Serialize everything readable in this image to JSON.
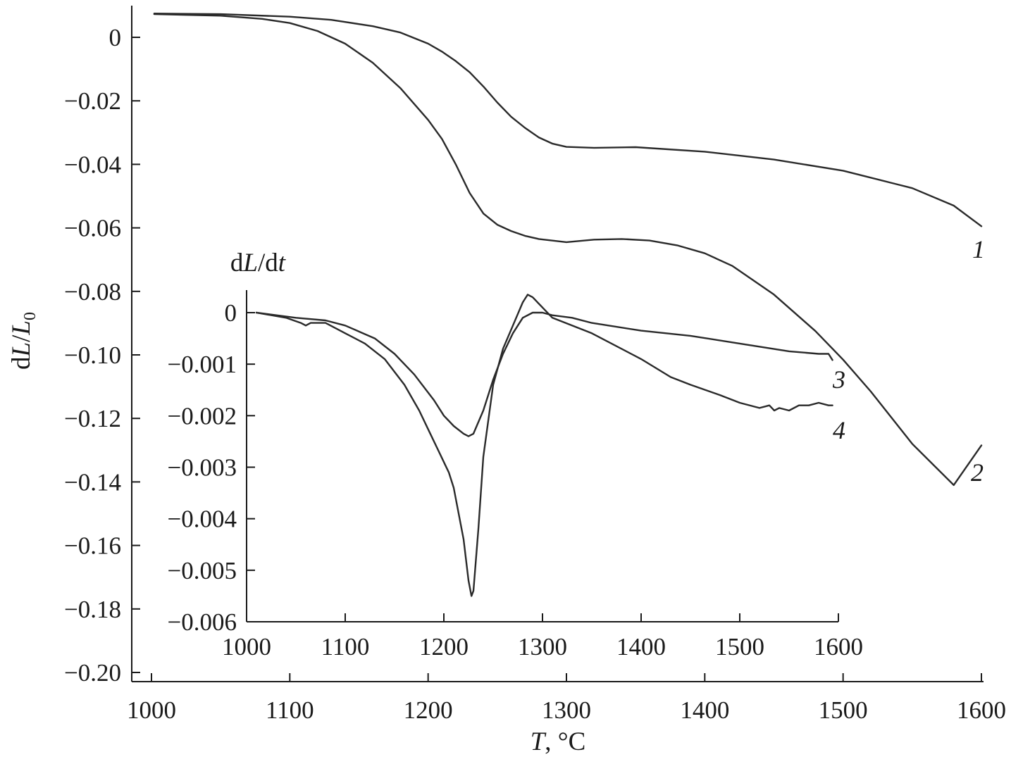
{
  "chart_data": [
    {
      "id": "main",
      "type": "line",
      "title": "",
      "xlabel": "T, °C",
      "ylabel": "dL/L0",
      "xlim": [
        1000,
        1600
      ],
      "ylim": [
        -0.2,
        0.01
      ],
      "x_ticks": [
        1000,
        1100,
        1200,
        1300,
        1400,
        1500,
        1600
      ],
      "x_tick_labels": [
        "1000",
        "1100",
        "1200",
        "1300",
        "1400",
        "1500",
        "1600"
      ],
      "y_ticks": [
        0,
        -0.02,
        -0.04,
        -0.06,
        -0.08,
        -0.1,
        -0.12,
        -0.14,
        -0.16,
        -0.18,
        -0.2
      ],
      "y_tick_labels": [
        "0",
        "−0.02",
        "−0.04",
        "−0.06",
        "−0.08",
        "−0.10",
        "−0.12",
        "−0.14",
        "−0.16",
        "−0.18",
        "−0.20"
      ],
      "grid": false,
      "series": [
        {
          "name": "1",
          "x": [
            1002,
            1050,
            1100,
            1130,
            1160,
            1180,
            1200,
            1210,
            1220,
            1230,
            1240,
            1250,
            1260,
            1270,
            1280,
            1290,
            1300,
            1320,
            1350,
            1400,
            1450,
            1500,
            1550,
            1580,
            1600
          ],
          "y": [
            0.0075,
            0.0073,
            0.0065,
            0.0055,
            0.0035,
            0.0015,
            -0.002,
            -0.0045,
            -0.0075,
            -0.011,
            -0.0155,
            -0.0205,
            -0.025,
            -0.0285,
            -0.0315,
            -0.0335,
            -0.0345,
            -0.0348,
            -0.0346,
            -0.036,
            -0.0385,
            -0.042,
            -0.0475,
            -0.053,
            -0.0595
          ]
        },
        {
          "name": "2",
          "x": [
            1002,
            1050,
            1080,
            1100,
            1120,
            1140,
            1160,
            1180,
            1200,
            1210,
            1220,
            1230,
            1240,
            1250,
            1260,
            1270,
            1280,
            1300,
            1320,
            1340,
            1360,
            1380,
            1400,
            1420,
            1450,
            1480,
            1500,
            1520,
            1550,
            1580,
            1600
          ],
          "y": [
            0.0073,
            0.0068,
            0.0058,
            0.0045,
            0.002,
            -0.002,
            -0.008,
            -0.016,
            -0.026,
            -0.032,
            -0.04,
            -0.049,
            -0.0555,
            -0.059,
            -0.061,
            -0.0625,
            -0.0635,
            -0.0645,
            -0.0637,
            -0.0635,
            -0.064,
            -0.0655,
            -0.068,
            -0.072,
            -0.081,
            -0.0925,
            -0.1015,
            -0.1115,
            -0.128,
            -0.141,
            -0.1285
          ]
        }
      ],
      "curve_labels": [
        "1",
        "2"
      ]
    },
    {
      "id": "inset",
      "type": "line",
      "title": "",
      "xlabel": "",
      "ylabel": "dL/dt",
      "xlim": [
        1000,
        1600
      ],
      "ylim": [
        -0.006,
        0.00045
      ],
      "x_ticks": [
        1000,
        1100,
        1200,
        1300,
        1400,
        1500,
        1600
      ],
      "x_tick_labels": [
        "1000",
        "1100",
        "1200",
        "1300",
        "1400",
        "1500",
        "1600"
      ],
      "y_ticks": [
        0,
        -0.001,
        -0.002,
        -0.003,
        -0.004,
        -0.005,
        -0.006
      ],
      "y_tick_labels": [
        "0",
        "−0.001",
        "−0.002",
        "−0.003",
        "−0.004",
        "−0.005",
        "−0.006"
      ],
      "grid": false,
      "series": [
        {
          "name": "3",
          "x": [
            1010,
            1050,
            1080,
            1100,
            1130,
            1150,
            1170,
            1190,
            1200,
            1210,
            1220,
            1225,
            1230,
            1240,
            1250,
            1260,
            1270,
            1280,
            1290,
            1300,
            1310,
            1330,
            1350,
            1400,
            1450,
            1500,
            1550,
            1580,
            1590,
            1594
          ],
          "y": [
            0.0,
            -0.0001,
            -0.00015,
            -0.00025,
            -0.0005,
            -0.0008,
            -0.0012,
            -0.0017,
            -0.002,
            -0.0022,
            -0.00235,
            -0.0024,
            -0.00235,
            -0.0019,
            -0.0013,
            -0.0008,
            -0.0004,
            -0.0001,
            0.0,
            0.0,
            -5e-05,
            -0.0001,
            -0.0002,
            -0.00035,
            -0.00045,
            -0.0006,
            -0.00075,
            -0.0008,
            -0.0008,
            -0.00092
          ]
        },
        {
          "name": "4",
          "x": [
            1010,
            1040,
            1055,
            1060,
            1065,
            1080,
            1100,
            1120,
            1140,
            1160,
            1175,
            1185,
            1195,
            1200,
            1205,
            1210,
            1215,
            1220,
            1225,
            1228,
            1230,
            1235,
            1240,
            1250,
            1260,
            1270,
            1280,
            1285,
            1290,
            1300,
            1310,
            1350,
            1400,
            1430,
            1450,
            1480,
            1500,
            1520,
            1530,
            1535,
            1540,
            1550,
            1560,
            1570,
            1580,
            1590,
            1594
          ],
          "y": [
            0.0,
            -0.0001,
            -0.0002,
            -0.00025,
            -0.0002,
            -0.0002,
            -0.0004,
            -0.0006,
            -0.0009,
            -0.0014,
            -0.0019,
            -0.0023,
            -0.0027,
            -0.0029,
            -0.0031,
            -0.0034,
            -0.0039,
            -0.0044,
            -0.0052,
            -0.0055,
            -0.0054,
            -0.0042,
            -0.0028,
            -0.0014,
            -0.0007,
            -0.00025,
            0.0002,
            0.00035,
            0.0003,
            0.0001,
            -0.0001,
            -0.0004,
            -0.0009,
            -0.00125,
            -0.0014,
            -0.0016,
            -0.00175,
            -0.00185,
            -0.0018,
            -0.0019,
            -0.00185,
            -0.0019,
            -0.0018,
            -0.0018,
            -0.00175,
            -0.0018,
            -0.0018
          ]
        }
      ],
      "curve_labels": [
        "3",
        "4"
      ]
    }
  ]
}
